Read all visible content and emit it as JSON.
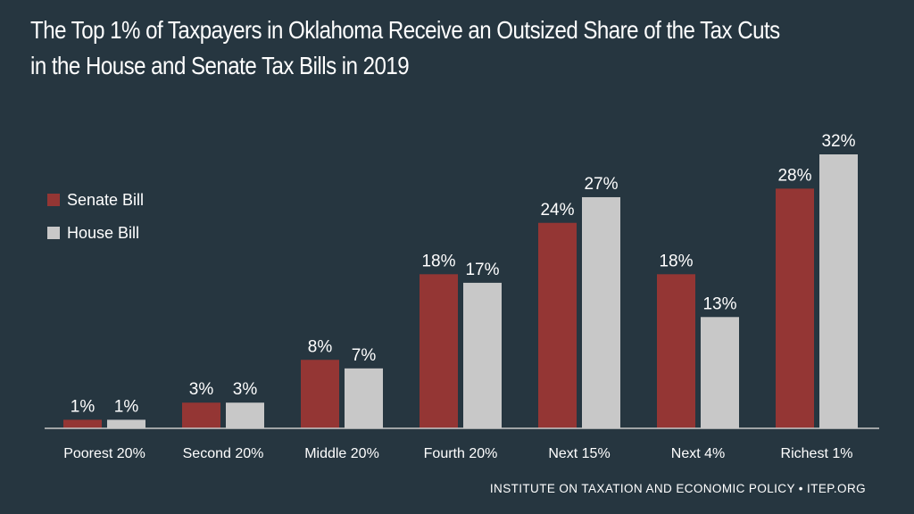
{
  "chart_data": {
    "type": "bar",
    "title_lines": [
      "The Top 1% of Taxpayers in Oklahoma Receive an Outsized Share of the Tax Cuts",
      "in the House and Senate Tax Bills in 2019"
    ],
    "categories": [
      "Poorest 20%",
      "Second 20%",
      "Middle 20%",
      "Fourth 20%",
      "Next 15%",
      "Next 4%",
      "Richest 1%"
    ],
    "series": [
      {
        "name": "Senate Bill",
        "color": "#943634",
        "values": [
          1,
          3,
          8,
          18,
          24,
          18,
          28
        ],
        "labels": [
          "1%",
          "3%",
          "8%",
          "18%",
          "24%",
          "18%",
          "28%"
        ]
      },
      {
        "name": "House Bill",
        "color": "#c8c8c8",
        "values": [
          1,
          3,
          7,
          17,
          27,
          13,
          32
        ],
        "labels": [
          "1%",
          "3%",
          "7%",
          "17%",
          "27%",
          "13%",
          "32%"
        ]
      }
    ],
    "ylim": [
      0,
      32
    ],
    "grid": false,
    "legend": "top-left",
    "xlabel": "",
    "ylabel": ""
  },
  "footer": "INSTITUTE ON TAXATION AND ECONOMIC POLICY • ITEP.ORG",
  "colors": {
    "background": "#263640",
    "axis": "#c8c8c8",
    "text": "#ffffff"
  }
}
